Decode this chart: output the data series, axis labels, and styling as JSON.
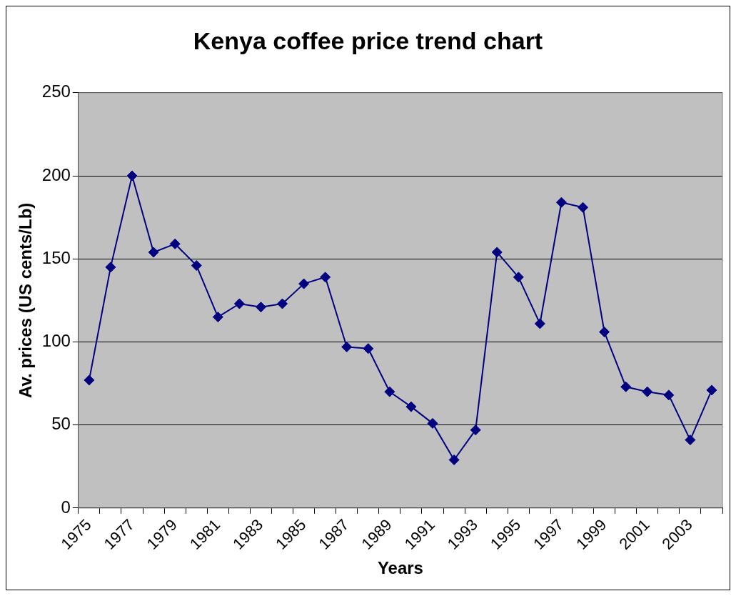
{
  "chart_data": {
    "type": "line",
    "title": "Kenya coffee price trend chart",
    "xlabel": "Years",
    "ylabel": "Av. prices (US cents/Lb)",
    "categories": [
      "1975",
      null,
      "1977",
      null,
      "1979",
      null,
      "1981",
      null,
      "1983",
      null,
      "1985",
      null,
      "1987",
      null,
      "1989",
      null,
      "1991",
      null,
      "1993",
      null,
      "1995",
      null,
      "1997",
      null,
      "1999",
      null,
      "2001",
      null,
      "2003",
      null
    ],
    "series": [
      {
        "color": "#000080",
        "values": [
          77,
          145,
          200,
          154,
          159,
          146,
          115,
          123,
          121,
          123,
          135,
          139,
          97,
          96,
          70,
          61,
          51,
          29,
          47,
          154,
          139,
          111,
          184,
          181,
          106,
          73,
          70,
          68,
          41,
          71
        ]
      }
    ],
    "ylim": [
      0,
      250
    ],
    "yticks": [
      0,
      50,
      100,
      150,
      200,
      250
    ],
    "grid": "y",
    "legend": false,
    "marker": "diamond",
    "line_style": "solid"
  }
}
